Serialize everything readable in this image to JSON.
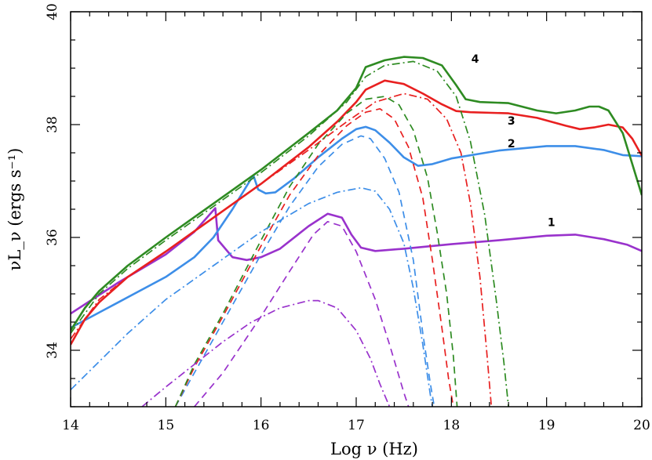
{
  "chart_data": {
    "type": "line",
    "title": "",
    "xlabel": "Log ν (Hz)",
    "ylabel": "νL_ν (ergs s⁻¹)",
    "xlim": [
      14,
      20
    ],
    "ylim": [
      33,
      40
    ],
    "xticks": [
      14,
      15,
      16,
      17,
      18,
      19,
      20
    ],
    "yticks": [
      34,
      36,
      38,
      40
    ],
    "x_tick_labels": [
      "14",
      "15",
      "16",
      "17",
      "18",
      "19",
      "20"
    ],
    "y_tick_labels": [
      "34",
      "36",
      "38",
      "40"
    ],
    "curve_labels": [
      {
        "text": "1",
        "x": 19.05,
        "y": 36.2,
        "color": "#000000"
      },
      {
        "text": "2",
        "x": 18.63,
        "y": 37.6,
        "color": "#000000"
      },
      {
        "text": "3",
        "x": 18.63,
        "y": 38.0,
        "color": "#000000"
      },
      {
        "text": "4",
        "x": 18.25,
        "y": 39.1,
        "color": "#000000"
      }
    ],
    "series": [
      {
        "name": "1 total",
        "color": "#9932CC",
        "style": "solid",
        "points": [
          [
            14,
            34.65
          ],
          [
            14.5,
            35.2
          ],
          [
            15,
            35.7
          ],
          [
            15.3,
            36.1
          ],
          [
            15.52,
            36.52
          ],
          [
            15.55,
            35.95
          ],
          [
            15.7,
            35.65
          ],
          [
            15.85,
            35.6
          ],
          [
            16,
            35.65
          ],
          [
            16.2,
            35.8
          ],
          [
            16.5,
            36.2
          ],
          [
            16.7,
            36.42
          ],
          [
            16.85,
            36.35
          ],
          [
            16.95,
            36.05
          ],
          [
            17.05,
            35.82
          ],
          [
            17.2,
            35.76
          ],
          [
            17.5,
            35.8
          ],
          [
            18,
            35.88
          ],
          [
            18.5,
            35.95
          ],
          [
            19,
            36.03
          ],
          [
            19.3,
            36.05
          ],
          [
            19.6,
            35.97
          ],
          [
            19.85,
            35.87
          ],
          [
            20,
            35.76
          ]
        ]
      },
      {
        "name": "2 total",
        "color": "#3D8EE8",
        "style": "solid",
        "points": [
          [
            14,
            34.4
          ],
          [
            14.5,
            34.85
          ],
          [
            15,
            35.3
          ],
          [
            15.3,
            35.65
          ],
          [
            15.5,
            36.0
          ],
          [
            15.7,
            36.5
          ],
          [
            15.9,
            37.05
          ],
          [
            15.92,
            37.1
          ],
          [
            15.97,
            36.85
          ],
          [
            16.05,
            36.78
          ],
          [
            16.15,
            36.8
          ],
          [
            16.35,
            37.05
          ],
          [
            16.6,
            37.42
          ],
          [
            16.85,
            37.75
          ],
          [
            17,
            37.92
          ],
          [
            17.1,
            37.96
          ],
          [
            17.2,
            37.9
          ],
          [
            17.35,
            37.68
          ],
          [
            17.5,
            37.42
          ],
          [
            17.65,
            37.27
          ],
          [
            17.8,
            37.3
          ],
          [
            18,
            37.4
          ],
          [
            18.5,
            37.54
          ],
          [
            19,
            37.62
          ],
          [
            19.3,
            37.62
          ],
          [
            19.6,
            37.55
          ],
          [
            19.8,
            37.46
          ],
          [
            20,
            37.44
          ]
        ]
      },
      {
        "name": "3 total",
        "color": "#E82020",
        "style": "solid",
        "points": [
          [
            14,
            34.1
          ],
          [
            14.15,
            34.55
          ],
          [
            14.3,
            34.85
          ],
          [
            14.6,
            35.3
          ],
          [
            15,
            35.75
          ],
          [
            15.5,
            36.35
          ],
          [
            16,
            36.95
          ],
          [
            16.5,
            37.6
          ],
          [
            16.8,
            38.05
          ],
          [
            17,
            38.4
          ],
          [
            17.1,
            38.62
          ],
          [
            17.3,
            38.78
          ],
          [
            17.5,
            38.72
          ],
          [
            17.7,
            38.55
          ],
          [
            17.9,
            38.36
          ],
          [
            18.05,
            38.24
          ],
          [
            18.2,
            38.22
          ],
          [
            18.6,
            38.2
          ],
          [
            18.9,
            38.12
          ],
          [
            19.2,
            37.98
          ],
          [
            19.35,
            37.92
          ],
          [
            19.5,
            37.95
          ],
          [
            19.65,
            38.0
          ],
          [
            19.8,
            37.95
          ],
          [
            19.9,
            37.75
          ],
          [
            20,
            37.45
          ]
        ]
      },
      {
        "name": "4 total",
        "color": "#2E8B22",
        "style": "solid",
        "points": [
          [
            14,
            34.35
          ],
          [
            14.15,
            34.75
          ],
          [
            14.3,
            35.05
          ],
          [
            14.6,
            35.5
          ],
          [
            15,
            36.0
          ],
          [
            15.5,
            36.6
          ],
          [
            16,
            37.2
          ],
          [
            16.5,
            37.85
          ],
          [
            16.8,
            38.25
          ],
          [
            17,
            38.65
          ],
          [
            17.1,
            39.02
          ],
          [
            17.3,
            39.14
          ],
          [
            17.5,
            39.2
          ],
          [
            17.7,
            39.18
          ],
          [
            17.9,
            39.05
          ],
          [
            18.05,
            38.7
          ],
          [
            18.15,
            38.45
          ],
          [
            18.3,
            38.4
          ],
          [
            18.6,
            38.38
          ],
          [
            18.9,
            38.25
          ],
          [
            19.1,
            38.2
          ],
          [
            19.3,
            38.25
          ],
          [
            19.45,
            38.32
          ],
          [
            19.55,
            38.32
          ],
          [
            19.65,
            38.25
          ],
          [
            19.8,
            37.85
          ],
          [
            19.9,
            37.3
          ],
          [
            20,
            36.75
          ]
        ]
      },
      {
        "name": "1 dashed",
        "color": "#9932CC",
        "style": "dashed",
        "points": [
          [
            15.3,
            33.0
          ],
          [
            15.6,
            33.6
          ],
          [
            16,
            34.6
          ],
          [
            16.3,
            35.4
          ],
          [
            16.55,
            36.05
          ],
          [
            16.7,
            36.28
          ],
          [
            16.85,
            36.2
          ],
          [
            17,
            35.75
          ],
          [
            17.2,
            34.9
          ],
          [
            17.35,
            34.1
          ],
          [
            17.5,
            33.25
          ],
          [
            17.55,
            33.0
          ]
        ]
      },
      {
        "name": "2 dashed",
        "color": "#3D8EE8",
        "style": "dashed",
        "points": [
          [
            15.1,
            33.0
          ],
          [
            15.3,
            33.6
          ],
          [
            15.6,
            34.5
          ],
          [
            16,
            35.7
          ],
          [
            16.3,
            36.55
          ],
          [
            16.6,
            37.25
          ],
          [
            16.85,
            37.65
          ],
          [
            17.05,
            37.8
          ],
          [
            17.15,
            37.75
          ],
          [
            17.3,
            37.4
          ],
          [
            17.45,
            36.8
          ],
          [
            17.6,
            35.6
          ],
          [
            17.7,
            34.3
          ],
          [
            17.78,
            33.4
          ],
          [
            17.82,
            33.0
          ]
        ]
      },
      {
        "name": "3 dashed",
        "color": "#E82020",
        "style": "dashed",
        "points": [
          [
            15.1,
            33.0
          ],
          [
            15.3,
            33.7
          ],
          [
            15.6,
            34.6
          ],
          [
            16,
            35.85
          ],
          [
            16.3,
            36.75
          ],
          [
            16.6,
            37.45
          ],
          [
            16.9,
            37.98
          ],
          [
            17.1,
            38.22
          ],
          [
            17.25,
            38.28
          ],
          [
            17.4,
            38.1
          ],
          [
            17.55,
            37.6
          ],
          [
            17.7,
            36.7
          ],
          [
            17.8,
            35.6
          ],
          [
            17.9,
            34.4
          ],
          [
            17.97,
            33.5
          ],
          [
            18.02,
            33.0
          ]
        ]
      },
      {
        "name": "4 dashed",
        "color": "#2E8B22",
        "style": "dashed",
        "points": [
          [
            15.1,
            33.0
          ],
          [
            15.3,
            33.75
          ],
          [
            15.6,
            34.65
          ],
          [
            16,
            35.95
          ],
          [
            16.3,
            36.9
          ],
          [
            16.6,
            37.65
          ],
          [
            16.9,
            38.2
          ],
          [
            17.1,
            38.45
          ],
          [
            17.3,
            38.5
          ],
          [
            17.45,
            38.35
          ],
          [
            17.6,
            37.9
          ],
          [
            17.75,
            37.05
          ],
          [
            17.85,
            36.1
          ],
          [
            17.95,
            35.0
          ],
          [
            18.02,
            33.9
          ],
          [
            18.06,
            33.0
          ]
        ]
      },
      {
        "name": "1 dash-dot",
        "color": "#9932CC",
        "style": "dashdot",
        "points": [
          [
            14.75,
            33.0
          ],
          [
            15,
            33.35
          ],
          [
            15.3,
            33.75
          ],
          [
            15.6,
            34.15
          ],
          [
            15.9,
            34.5
          ],
          [
            16.2,
            34.75
          ],
          [
            16.5,
            34.88
          ],
          [
            16.6,
            34.88
          ],
          [
            16.8,
            34.75
          ],
          [
            17,
            34.35
          ],
          [
            17.15,
            33.85
          ],
          [
            17.25,
            33.4
          ],
          [
            17.35,
            33.0
          ]
        ]
      },
      {
        "name": "2 dash-dot",
        "color": "#3D8EE8",
        "style": "dashdot",
        "points": [
          [
            14,
            33.3
          ],
          [
            14.3,
            33.8
          ],
          [
            14.6,
            34.3
          ],
          [
            15,
            34.9
          ],
          [
            15.5,
            35.5
          ],
          [
            16,
            36.1
          ],
          [
            16.5,
            36.6
          ],
          [
            16.8,
            36.8
          ],
          [
            17.05,
            36.88
          ],
          [
            17.2,
            36.82
          ],
          [
            17.35,
            36.5
          ],
          [
            17.5,
            35.9
          ],
          [
            17.6,
            35.1
          ],
          [
            17.7,
            34.1
          ],
          [
            17.78,
            33.2
          ],
          [
            17.8,
            33.0
          ]
        ]
      },
      {
        "name": "3 dash-dot",
        "color": "#E82020",
        "style": "dashdot",
        "points": [
          [
            14,
            34.2
          ],
          [
            14.3,
            34.9
          ],
          [
            14.6,
            35.3
          ],
          [
            15,
            35.75
          ],
          [
            15.5,
            36.35
          ],
          [
            16,
            36.95
          ],
          [
            16.5,
            37.55
          ],
          [
            16.9,
            38.05
          ],
          [
            17.2,
            38.4
          ],
          [
            17.5,
            38.55
          ],
          [
            17.75,
            38.45
          ],
          [
            17.95,
            38.1
          ],
          [
            18.1,
            37.5
          ],
          [
            18.2,
            36.6
          ],
          [
            18.3,
            35.3
          ],
          [
            18.37,
            34.0
          ],
          [
            18.42,
            33.0
          ]
        ]
      },
      {
        "name": "4 dash-dot",
        "color": "#2E8B22",
        "style": "dashdot",
        "points": [
          [
            14,
            34.3
          ],
          [
            14.3,
            35.0
          ],
          [
            14.6,
            35.45
          ],
          [
            15,
            35.95
          ],
          [
            15.5,
            36.55
          ],
          [
            16,
            37.15
          ],
          [
            16.5,
            37.8
          ],
          [
            16.9,
            38.4
          ],
          [
            17.1,
            38.85
          ],
          [
            17.3,
            39.05
          ],
          [
            17.6,
            39.12
          ],
          [
            17.85,
            38.95
          ],
          [
            18.05,
            38.5
          ],
          [
            18.2,
            37.7
          ],
          [
            18.35,
            36.4
          ],
          [
            18.47,
            34.9
          ],
          [
            18.55,
            33.8
          ],
          [
            18.6,
            33.0
          ]
        ]
      }
    ]
  }
}
